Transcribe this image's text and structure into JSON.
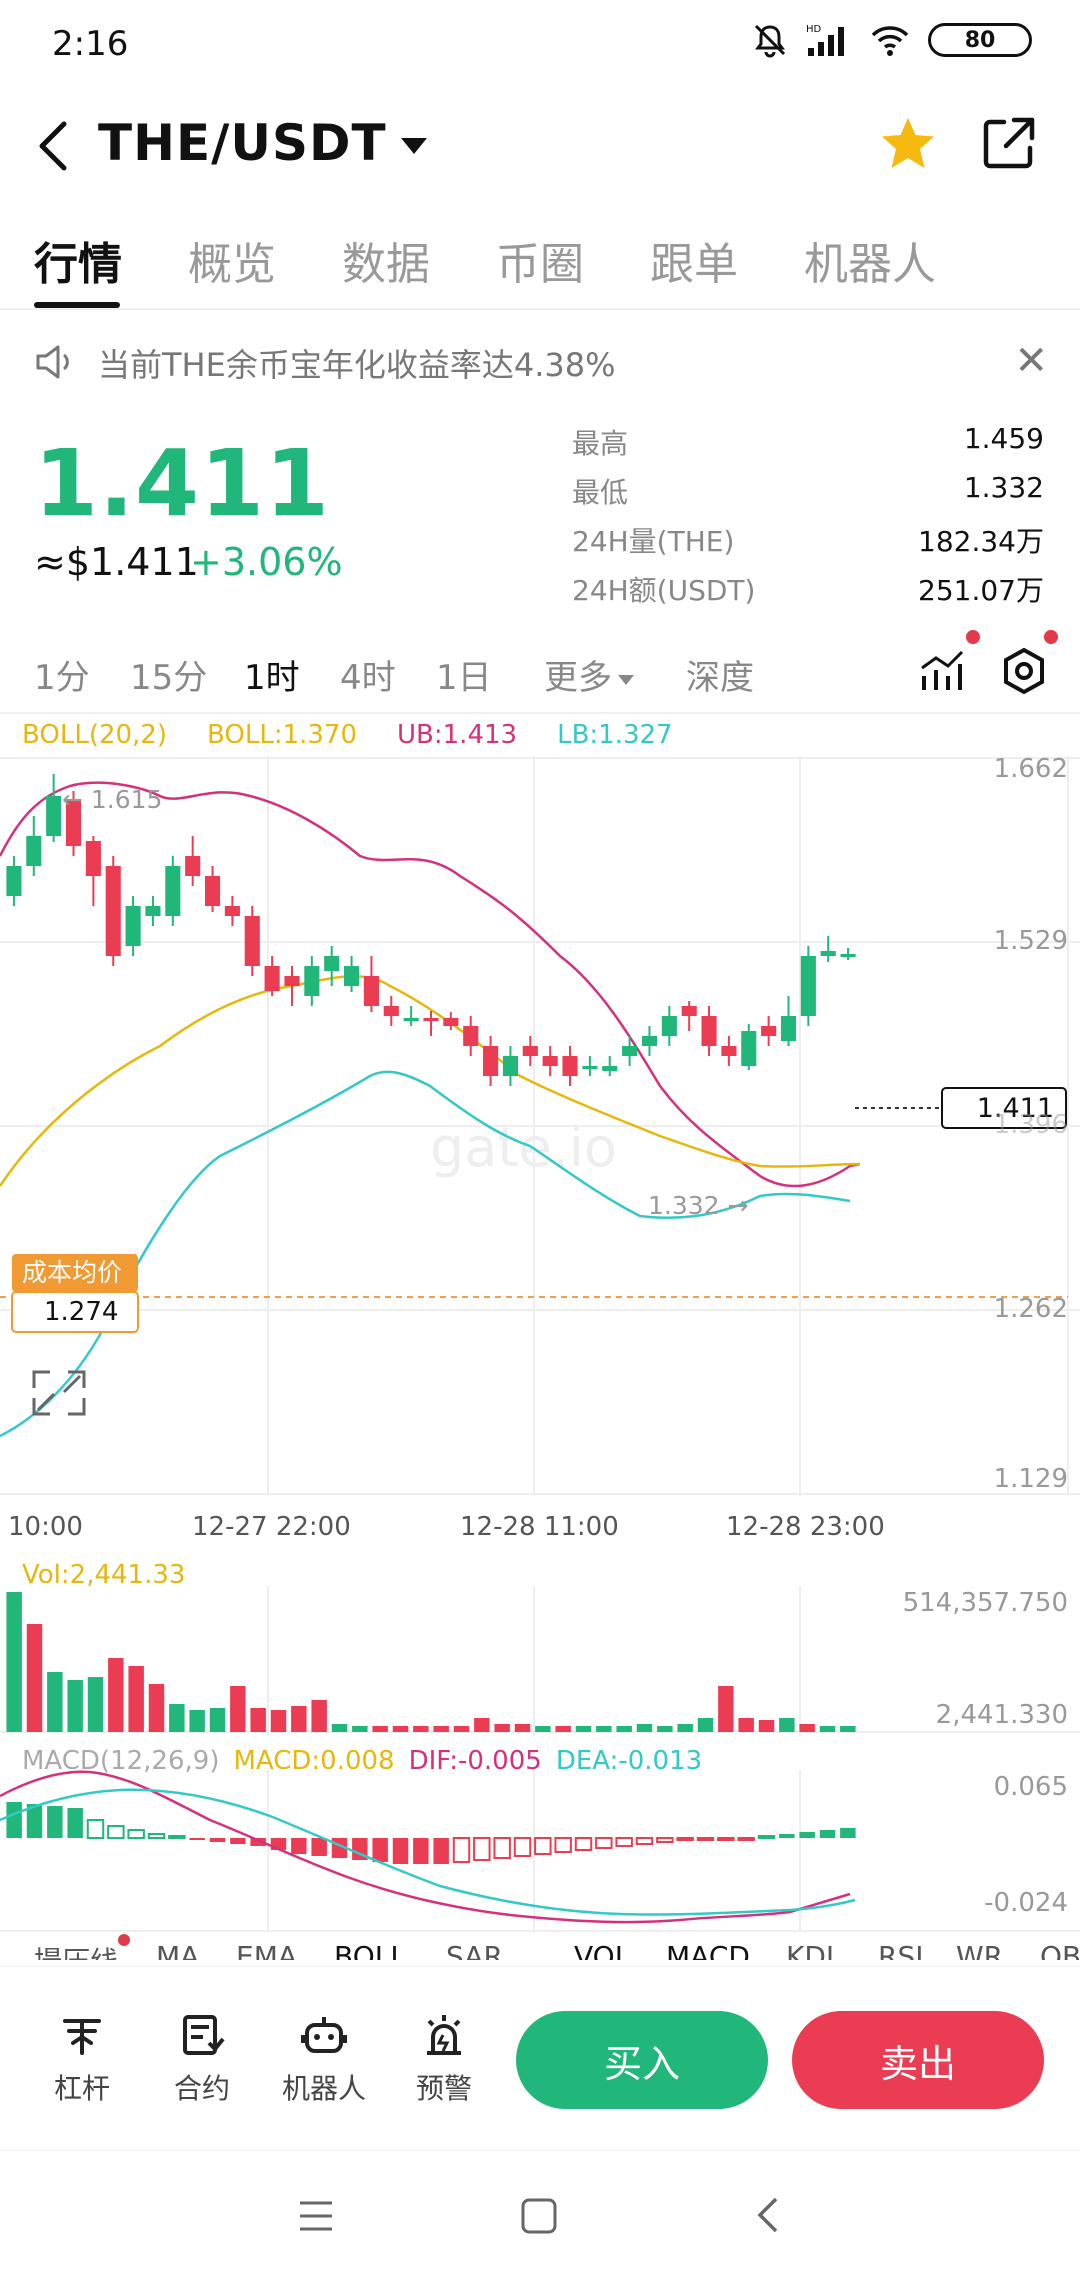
{
  "status": {
    "time": "2:16",
    "battery": "80",
    "net": "HD"
  },
  "header": {
    "pair": "THE/USDT"
  },
  "tabs": [
    "行情",
    "概览",
    "数据",
    "币圈",
    "跟单",
    "机器人"
  ],
  "notice": {
    "text": "当前THE余币宝年化收益率达4.38%"
  },
  "ticker": {
    "price": "1.411",
    "usd": "≈$1.411",
    "change": "+3.06%",
    "stats": [
      {
        "label": "最高",
        "value": "1.459"
      },
      {
        "label": "最低",
        "value": "1.332"
      },
      {
        "label": "24H量(THE)",
        "value": "182.34万"
      },
      {
        "label": "24H额(USDT)",
        "value": "251.07万"
      }
    ]
  },
  "periods": {
    "items": [
      "1分",
      "15分",
      "1时",
      "4时",
      "1日"
    ],
    "more": "更多",
    "depth": "深度"
  },
  "boll": {
    "label": "BOLL(20,2)",
    "mid": "BOLL:1.370",
    "ub": "UB:1.413",
    "lb": "LB:1.327"
  },
  "chart_axis": {
    "ticks": [
      "1.662",
      "1.529",
      "1.396",
      "1.262",
      "1.129"
    ],
    "time_labels": [
      "10:00",
      "12-27 22:00",
      "12-28 11:00",
      "12-28 23:00"
    ],
    "high_label": "← 1.615",
    "low_label": "1.332 →",
    "last_price": "1.411",
    "cost_label": "成本均价",
    "cost_value": "1.274"
  },
  "volume": {
    "label": "Vol:2,441.33",
    "max": "514,357.750",
    "cur": "2,441.330"
  },
  "macd": {
    "label": "MACD(12,26,9)",
    "macd": "MACD:0.008",
    "dif": "DIF:-0.005",
    "dea": "DEA:-0.013",
    "max": "0.065",
    "min": "-0.024"
  },
  "indicators": [
    "撮压线",
    "MA",
    "EMA",
    "BOLL",
    "SAR",
    "VOL",
    "MACD",
    "KDJ",
    "RSI",
    "WR",
    "OBV"
  ],
  "bottom": {
    "items": [
      "杠杆",
      "合约",
      "机器人",
      "预警"
    ],
    "buy": "买入",
    "sell": "卖出"
  },
  "colors": {
    "up": "#21b67a",
    "down": "#ea3c53",
    "boll_mid": "#e6b80d",
    "boll_ub": "#d4317d",
    "boll_lb": "#33c9c6"
  }
}
